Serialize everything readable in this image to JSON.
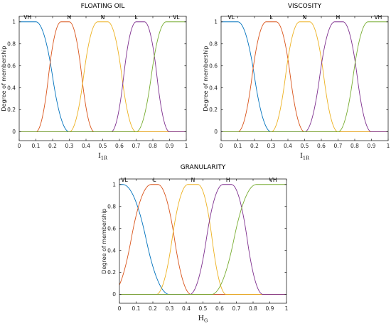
{
  "chart_data": [
    {
      "type": "line",
      "title": "FLOATING OIL",
      "xlabel": "I",
      "xlabel_sub": "1R",
      "ylabel": "Degree of membership",
      "xlim": [
        0,
        1
      ],
      "ylim": [
        -0.08,
        1.05
      ],
      "x_ticks": [
        "0",
        "0.1",
        "0.2",
        "0.3",
        "0.4",
        "0.5",
        "0.6",
        "0.7",
        "0.8",
        "0.9",
        "1"
      ],
      "y_ticks": [
        "0",
        "0.2",
        "0.4",
        "0.6",
        "0.8",
        "1"
      ],
      "series": [
        {
          "name": "VH",
          "label_x": 0.05,
          "color": "#0072BD",
          "shape": "zmf",
          "params": [
            0.1,
            0.3
          ]
        },
        {
          "name": "H",
          "label_x": 0.3,
          "color": "#D95319",
          "shape": "pimf",
          "params": [
            0.1,
            0.25,
            0.3,
            0.45
          ]
        },
        {
          "name": "N",
          "label_x": 0.5,
          "color": "#EDB120",
          "shape": "pimf",
          "params": [
            0.3,
            0.47,
            0.53,
            0.7
          ]
        },
        {
          "name": "L",
          "label_x": 0.7,
          "color": "#7E2F8E",
          "shape": "pimf",
          "params": [
            0.55,
            0.7,
            0.75,
            0.9
          ]
        },
        {
          "name": "VL",
          "label_x": 0.94,
          "color": "#77AC30",
          "shape": "smf",
          "params": [
            0.7,
            0.88
          ]
        }
      ]
    },
    {
      "type": "line",
      "title": "VISCOSITY",
      "xlabel": "I",
      "xlabel_sub": "1R",
      "ylabel": "Degree of membership",
      "xlim": [
        0,
        1
      ],
      "ylim": [
        -0.08,
        1.05
      ],
      "x_ticks": [
        "0",
        "0.1",
        "0.2",
        "0.3",
        "0.4",
        "0.5",
        "0.6",
        "0.7",
        "0.8",
        "0.9",
        "1"
      ],
      "y_ticks": [
        "0",
        "0.2",
        "0.4",
        "0.6",
        "0.8",
        "1"
      ],
      "series": [
        {
          "name": "VL",
          "label_x": 0.06,
          "color": "#0072BD",
          "shape": "zmf",
          "params": [
            0.1,
            0.3
          ]
        },
        {
          "name": "L",
          "label_x": 0.3,
          "color": "#D95319",
          "shape": "pimf",
          "params": [
            0.1,
            0.27,
            0.33,
            0.5
          ]
        },
        {
          "name": "N",
          "label_x": 0.5,
          "color": "#EDB120",
          "shape": "pimf",
          "params": [
            0.3,
            0.47,
            0.53,
            0.7
          ]
        },
        {
          "name": "H",
          "label_x": 0.7,
          "color": "#7E2F8E",
          "shape": "pimf",
          "params": [
            0.5,
            0.68,
            0.73,
            0.9
          ]
        },
        {
          "name": "VH",
          "label_x": 0.94,
          "color": "#77AC30",
          "shape": "smf",
          "params": [
            0.7,
            0.88
          ]
        }
      ]
    },
    {
      "type": "line",
      "title": "GRANULARITY",
      "xlabel": "H",
      "xlabel_sub": "G",
      "ylabel": "Degree of membership",
      "xlim": [
        0,
        1
      ],
      "ylim": [
        -0.08,
        1.05
      ],
      "x_ticks": [
        "0",
        "0.1",
        "0.2",
        "0.3",
        "0.4",
        "0.5",
        "0.6",
        "0.7",
        "0.8",
        "0.9",
        "1"
      ],
      "y_ticks": [
        "0",
        "0.2",
        "0.4",
        "0.6",
        "0.8",
        "1"
      ],
      "series": [
        {
          "name": "VL",
          "label_x": 0.03,
          "color": "#0072BD",
          "shape": "zmf",
          "params": [
            0.02,
            0.3
          ]
        },
        {
          "name": "L",
          "label_x": 0.21,
          "color": "#D95319",
          "shape": "pimf",
          "params": [
            -0.05,
            0.19,
            0.23,
            0.43
          ]
        },
        {
          "name": "N",
          "label_x": 0.44,
          "color": "#EDB120",
          "shape": "pimf",
          "params": [
            0.22,
            0.41,
            0.47,
            0.64
          ]
        },
        {
          "name": "H",
          "label_x": 0.65,
          "color": "#7E2F8E",
          "shape": "pimf",
          "params": [
            0.42,
            0.62,
            0.67,
            0.86
          ]
        },
        {
          "name": "VH",
          "label_x": 0.92,
          "color": "#77AC30",
          "shape": "smf",
          "params": [
            0.55,
            0.82
          ]
        }
      ]
    }
  ]
}
